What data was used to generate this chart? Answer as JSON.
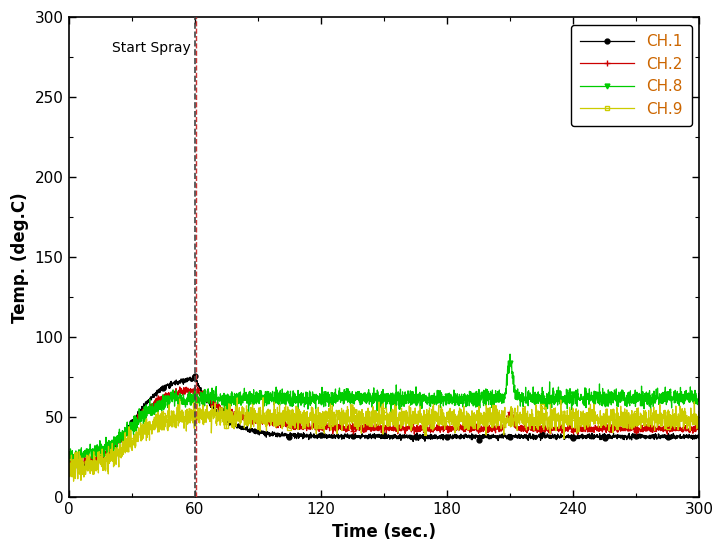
{
  "title": "",
  "xlabel": "Time (sec.)",
  "ylabel": "Temp. (deg.C)",
  "xlim": [
    0,
    300
  ],
  "ylim": [
    0,
    300
  ],
  "xticks": [
    0,
    60,
    120,
    180,
    240,
    300
  ],
  "yticks": [
    0,
    50,
    100,
    150,
    200,
    250,
    300
  ],
  "spray_x": 60,
  "spray_label": "Start Spray",
  "legend_labels": [
    "CH.1",
    "CH.2",
    "CH.8",
    "CH.9"
  ],
  "ch1_color": "#000000",
  "ch2_color": "#cc0000",
  "ch8_color": "#00cc00",
  "ch9_color": "#cccc00",
  "legend_text_color": "#cc6600",
  "background_color": "#ffffff",
  "vline_black_color": "#444444",
  "vline_red_color": "#cc3333"
}
